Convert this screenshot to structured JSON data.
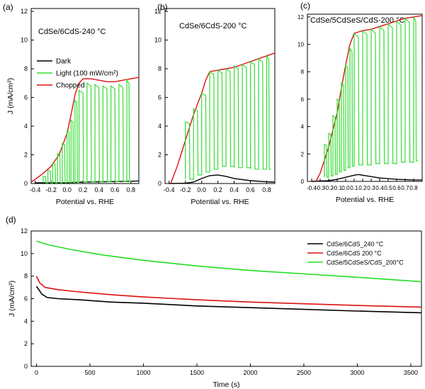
{
  "figure": {
    "panel_labels": [
      "(a)",
      "(b)",
      "(c)",
      "(d)"
    ]
  },
  "colors": {
    "dark": "#000000",
    "light": "#33dd33",
    "chopped": "#dd1111",
    "d_green": "#22dd22"
  },
  "chart_data": [
    {
      "panel": "(a)",
      "type": "line",
      "title": "CdSe/6CdS-240 °C",
      "xlabel": "Potential vs. RHE",
      "ylabel": "J (mA/cm²)",
      "xlim": [
        -0.45,
        0.9
      ],
      "ylim": [
        0,
        12.2
      ],
      "xticks": [
        "-0.4",
        "-0.2",
        "0.0",
        "0.2",
        "0.4",
        "0.6",
        "0.8"
      ],
      "xtick_values": [
        -0.4,
        -0.2,
        0.0,
        0.2,
        0.4,
        0.6,
        0.8
      ],
      "yticks": [
        "0",
        "2",
        "4",
        "6",
        "8",
        "10",
        "12"
      ],
      "ytick_values": [
        0,
        2,
        4,
        6,
        8,
        10,
        12
      ],
      "legend": {
        "placement": "middle-left",
        "entries": [
          "Dark",
          "Light (100 mW/cm²)",
          "Chopped"
        ]
      },
      "series": [
        {
          "name": "Dark",
          "color": "#000000",
          "x": [
            -0.4,
            -0.2,
            0.0,
            0.1,
            0.2,
            0.4,
            0.6,
            0.8,
            0.9
          ],
          "y": [
            0.05,
            0.05,
            0.06,
            0.08,
            0.1,
            0.12,
            0.14,
            0.16,
            0.18
          ]
        },
        {
          "name": "Chopped",
          "color": "#dd1111",
          "x": [
            -0.45,
            -0.4,
            -0.3,
            -0.2,
            -0.1,
            0.0,
            0.05,
            0.1,
            0.15,
            0.2,
            0.3,
            0.4,
            0.5,
            0.6,
            0.7,
            0.8,
            0.9
          ],
          "y": [
            0.1,
            0.3,
            0.7,
            1.2,
            2.0,
            3.5,
            4.8,
            6.2,
            7.0,
            7.3,
            7.3,
            7.2,
            7.1,
            7.1,
            7.2,
            7.3,
            7.4
          ]
        },
        {
          "name": "Light (100 mW/cm²)",
          "color": "#33dd33",
          "chop": true,
          "chop_positions": [
            -0.3,
            -0.24,
            -0.18,
            -0.12,
            -0.06,
            0.0,
            0.05,
            0.1,
            0.15,
            0.25,
            0.35,
            0.45,
            0.55,
            0.65,
            0.75
          ],
          "on_values": [
            0.5,
            0.9,
            1.4,
            2.1,
            2.8,
            3.7,
            4.4,
            5.8,
            6.5,
            7.0,
            6.9,
            6.8,
            6.8,
            6.9,
            7.2
          ],
          "dark_values": [
            0.05,
            0.05,
            0.05,
            0.05,
            0.06,
            0.06,
            0.07,
            0.08,
            0.1,
            0.1,
            0.11,
            0.12,
            0.13,
            0.14,
            0.15
          ]
        }
      ]
    },
    {
      "panel": "(b)",
      "type": "line",
      "title": "CdSe/6CdS-200 °C",
      "xlabel": "Potential vs. RHE",
      "ylabel": "",
      "xlim": [
        -0.45,
        0.9
      ],
      "ylim": [
        0,
        12.2
      ],
      "xticks": [
        "-0.4",
        "-0.2",
        "0.0",
        "0.2",
        "0.4",
        "0.6",
        "0.8"
      ],
      "xtick_values": [
        -0.4,
        -0.2,
        0.0,
        0.2,
        0.4,
        0.6,
        0.8
      ],
      "yticks": [
        "0",
        "2",
        "4",
        "6",
        "8",
        "10",
        "12"
      ],
      "ytick_values": [
        0,
        2,
        4,
        6,
        8,
        10,
        12
      ],
      "series": [
        {
          "name": "Dark",
          "color": "#000000",
          "x": [
            -0.4,
            -0.2,
            -0.1,
            0.0,
            0.1,
            0.2,
            0.3,
            0.4,
            0.6,
            0.8,
            0.9
          ],
          "y": [
            0.0,
            0.02,
            0.1,
            0.35,
            0.55,
            0.6,
            0.5,
            0.35,
            0.2,
            0.12,
            0.1
          ]
        },
        {
          "name": "Chopped",
          "color": "#dd1111",
          "x": [
            -0.38,
            -0.3,
            -0.2,
            -0.1,
            0.0,
            0.05,
            0.1,
            0.2,
            0.3,
            0.4,
            0.5,
            0.6,
            0.7,
            0.8,
            0.9
          ],
          "y": [
            0.0,
            1.2,
            3.0,
            4.8,
            6.3,
            7.2,
            7.8,
            7.9,
            8.0,
            8.1,
            8.3,
            8.5,
            8.7,
            8.9,
            9.1
          ]
        },
        {
          "name": "Light (100 mW/cm²)",
          "color": "#33dd33",
          "chop": true,
          "chop_positions": [
            -0.2,
            -0.1,
            0.0,
            0.1,
            0.2,
            0.3,
            0.4,
            0.5,
            0.6,
            0.7,
            0.8
          ],
          "on_values": [
            4.3,
            5.2,
            6.3,
            7.8,
            7.9,
            8.0,
            8.2,
            8.3,
            8.5,
            8.7,
            8.9
          ],
          "dark_values": [
            0.3,
            0.6,
            0.8,
            1.0,
            1.2,
            1.2,
            1.1,
            1.1,
            1.0,
            1.0,
            1.0
          ]
        }
      ]
    },
    {
      "panel": "(c)",
      "type": "line",
      "title": "CdSe/5CdSeS/CdS-200 °C",
      "xlabel": "Potential vs. RHE",
      "ylabel": "",
      "xlim": [
        -0.45,
        0.9
      ],
      "ylim": [
        0,
        12.2
      ],
      "xticks": [
        "-0.4",
        "-0.3",
        "-0.2",
        "-0.1",
        "0.0",
        "0.1",
        "0.2",
        "0.3",
        "0.4",
        "0.5",
        "0.6",
        "0.7",
        "0.8"
      ],
      "xtick_values": [
        -0.4,
        -0.3,
        -0.2,
        -0.1,
        0.0,
        0.1,
        0.2,
        0.3,
        0.4,
        0.5,
        0.6,
        0.7,
        0.8
      ],
      "yticks": [
        "0",
        "2",
        "4",
        "6",
        "8",
        "10",
        "12"
      ],
      "ytick_values": [
        0,
        2,
        4,
        6,
        8,
        10,
        12
      ],
      "series": [
        {
          "name": "Dark",
          "color": "#000000",
          "x": [
            -0.4,
            -0.2,
            -0.1,
            0.0,
            0.1,
            0.15,
            0.2,
            0.3,
            0.4,
            0.6,
            0.8,
            0.9
          ],
          "y": [
            0.0,
            0.05,
            0.15,
            0.3,
            0.45,
            0.5,
            0.45,
            0.35,
            0.25,
            0.15,
            0.1,
            0.1
          ]
        },
        {
          "name": "Chopped",
          "color": "#dd1111",
          "x": [
            -0.35,
            -0.3,
            -0.2,
            -0.1,
            -0.05,
            0.0,
            0.05,
            0.1,
            0.2,
            0.3,
            0.4,
            0.5,
            0.6,
            0.7,
            0.8,
            0.9
          ],
          "y": [
            0.0,
            0.6,
            2.5,
            5.0,
            6.8,
            8.5,
            10.0,
            10.8,
            11.0,
            11.1,
            11.3,
            11.5,
            11.7,
            11.9,
            12.0,
            12.1
          ]
        },
        {
          "name": "Light (100 mW/cm²)",
          "color": "#33dd33",
          "chop": true,
          "chop_positions": [
            -0.25,
            -0.2,
            -0.15,
            -0.1,
            -0.05,
            0.0,
            0.05,
            0.1,
            0.2,
            0.3,
            0.4,
            0.5,
            0.6,
            0.7,
            0.8
          ],
          "on_values": [
            2.7,
            3.5,
            4.8,
            6.0,
            7.2,
            8.5,
            9.7,
            10.8,
            11.0,
            11.1,
            11.3,
            11.5,
            11.7,
            11.9,
            12.0
          ],
          "dark_values": [
            0.3,
            0.4,
            0.5,
            0.7,
            0.8,
            1.0,
            1.1,
            1.2,
            1.2,
            1.3,
            1.3,
            1.3,
            1.4,
            1.4,
            1.5
          ]
        }
      ]
    },
    {
      "panel": "(d)",
      "type": "line",
      "title": "",
      "xlabel": "Time (s)",
      "ylabel": "J (mA/cm²)",
      "xlim": [
        -50,
        3600
      ],
      "ylim": [
        0,
        12
      ],
      "xticks": [
        "0",
        "500",
        "1000",
        "1500",
        "2000",
        "2500",
        "3000",
        "3500"
      ],
      "xtick_values": [
        0,
        500,
        1000,
        1500,
        2000,
        2500,
        3000,
        3500
      ],
      "yticks": [
        "0",
        "2",
        "4",
        "6",
        "8",
        "10",
        "12"
      ],
      "ytick_values": [
        0,
        2,
        4,
        6,
        8,
        10,
        12
      ],
      "legend": {
        "placement": "top-right",
        "entries": [
          "CdSe/6CdS_240 °C",
          "CdSe/6CdS  200 °C",
          "CdSe/5CdSeS/CdS_200°C"
        ]
      },
      "series": [
        {
          "name": "CdSe/6CdS_240 °C",
          "color": "#000000",
          "x": [
            0,
            50,
            100,
            200,
            400,
            700,
            1000,
            1500,
            2000,
            2500,
            3000,
            3600
          ],
          "y": [
            7.1,
            6.4,
            6.1,
            6.0,
            5.9,
            5.7,
            5.6,
            5.35,
            5.2,
            5.05,
            4.9,
            4.75
          ]
        },
        {
          "name": "CdSe/6CdS  200 °C",
          "color": "#dd1111",
          "x": [
            0,
            30,
            80,
            200,
            400,
            700,
            1000,
            1500,
            2000,
            2500,
            3000,
            3600
          ],
          "y": [
            8.0,
            7.4,
            7.0,
            6.8,
            6.6,
            6.35,
            6.15,
            5.9,
            5.7,
            5.55,
            5.4,
            5.25
          ]
        },
        {
          "name": "CdSe/5CdSeS/CdS_200°C",
          "color": "#22dd22",
          "x": [
            0,
            100,
            300,
            600,
            1000,
            1500,
            2000,
            2500,
            3000,
            3600
          ],
          "y": [
            11.1,
            10.8,
            10.4,
            9.9,
            9.4,
            8.9,
            8.5,
            8.2,
            7.9,
            7.5
          ]
        }
      ]
    }
  ]
}
